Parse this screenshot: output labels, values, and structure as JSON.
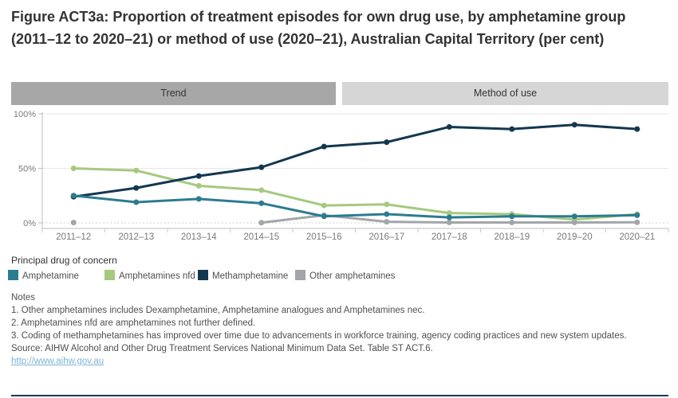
{
  "title": "Figure ACT3a: Proportion of treatment episodes for own drug use, by amphetamine group (2011–12 to 2020–21) or method of use (2020–21), Australian Capital Territory (per cent)",
  "tabs": [
    {
      "label": "Trend",
      "selected": true
    },
    {
      "label": "Method of use",
      "selected": false
    }
  ],
  "chart_data": {
    "type": "line",
    "title": "Trend",
    "xlabel": "",
    "ylabel": "",
    "ylim": [
      0,
      100
    ],
    "grid": "horizontal",
    "y_ticks": [
      {
        "value": 0,
        "label": "0%"
      },
      {
        "value": 50,
        "label": "50%"
      },
      {
        "value": 100,
        "label": "100%"
      }
    ],
    "categories": [
      "2011–12",
      "2012–13",
      "2013–14",
      "2014–15",
      "2015–16",
      "2016–17",
      "2017–18",
      "2018–19",
      "2019–20",
      "2020–21"
    ],
    "series": [
      {
        "name": "Amphetamines nfd",
        "color": "#a5c97e",
        "values": [
          50,
          48,
          34,
          30,
          16,
          17,
          9,
          8,
          3,
          8
        ]
      },
      {
        "name": "Other amphetamines",
        "color": "#a2a6a9",
        "values": [
          0.3,
          null,
          null,
          0.2,
          7,
          1,
          0.4,
          0.4,
          0.4,
          0.5
        ]
      },
      {
        "name": "Methamphetamine",
        "color": "#12384f",
        "values": [
          24,
          32,
          43,
          51,
          70,
          74,
          88,
          86,
          90,
          86
        ]
      },
      {
        "name": "Amphetamine",
        "color": "#2b7c8f",
        "values": [
          25,
          19,
          22,
          18,
          6,
          8,
          5,
          6,
          6,
          7
        ]
      }
    ],
    "legend_position": "bottom"
  },
  "legend": {
    "title": "Principal drug of concern",
    "items": [
      {
        "label": "Amphetamine",
        "color": "#2b7c8f"
      },
      {
        "label": "Amphetamines nfd",
        "color": "#a5c97e"
      },
      {
        "label": "Methamphetamine",
        "color": "#12384f"
      },
      {
        "label": "Other amphetamines",
        "color": "#a2a6a9"
      }
    ]
  },
  "notes": {
    "heading": "Notes",
    "items": [
      "1. Other amphetamines includes Dexamphetamine, Amphetamine analogues and Amphetamines nec.",
      "2. Amphetamines nfd are amphetamines not further defined.",
      "3. Coding of methamphetamines has improved over time due to advancements in workforce training, agency coding practices and new system updates."
    ],
    "source": "Source: AIHW Alcohol and Other Drug Treatment Services National Minimum Data Set. Table ST ACT.6.",
    "url": "http://www.aihw.gov.au"
  }
}
